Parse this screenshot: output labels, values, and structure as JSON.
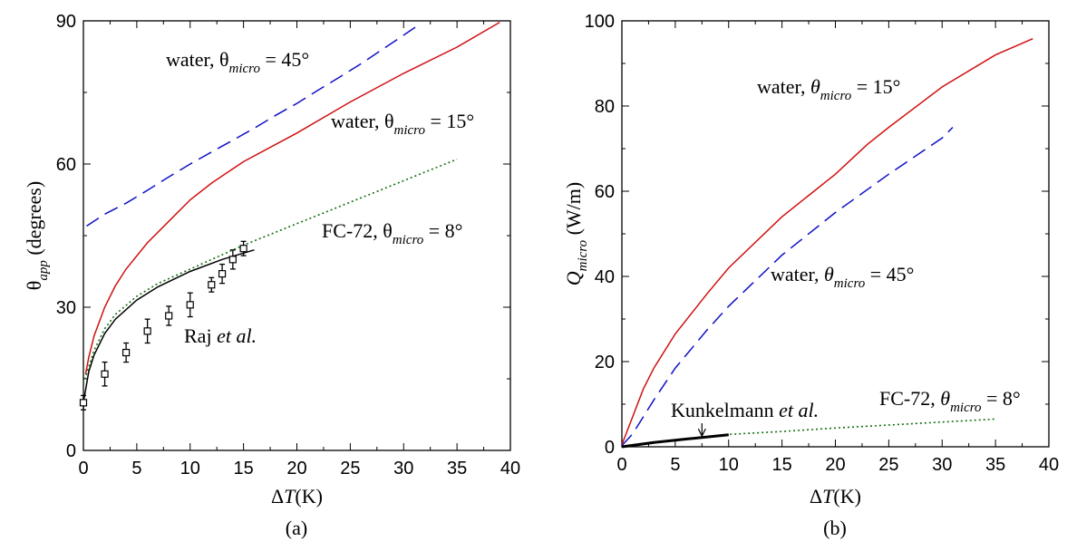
{
  "chart_data": [
    {
      "type": "line",
      "caption": "(a)",
      "xlabel": {
        "symbol": "Δ",
        "var": "T",
        "unit": "(K)"
      },
      "ylabel": {
        "symbol": "θ",
        "sub": "app",
        "unit": "(degrees)"
      },
      "xlim": [
        0,
        40
      ],
      "ylim": [
        0,
        90
      ],
      "x_ticks": [
        "0",
        "5",
        "10",
        "15",
        "20",
        "25",
        "30",
        "35",
        "40"
      ],
      "y_ticks": [
        "0",
        "30",
        "60",
        "90"
      ],
      "grid": false,
      "series": [
        {
          "id": "water45",
          "color": "#1010c8",
          "style": "dashed",
          "label": {
            "pre": "water, θ",
            "sub": "micro",
            "post": " = 45°"
          },
          "points": [
            [
              0.3,
              47
            ],
            [
              2,
              49.5
            ],
            [
              4,
              51.8
            ],
            [
              6,
              54.5
            ],
            [
              8,
              57.3
            ],
            [
              10,
              60
            ],
            [
              12,
              62.5
            ],
            [
              14,
              65
            ],
            [
              16,
              67.5
            ],
            [
              18,
              70.2
            ],
            [
              20,
              72.7
            ],
            [
              22,
              75.5
            ],
            [
              24,
              78.2
            ],
            [
              26,
              81
            ],
            [
              28,
              84
            ],
            [
              30,
              87
            ],
            [
              31.3,
              89
            ]
          ]
        },
        {
          "id": "water15",
          "color": "#d01010",
          "style": "solid",
          "label": {
            "pre": "water, θ",
            "sub": "micro",
            "post": " = 15°"
          },
          "points": [
            [
              0.2,
              16
            ],
            [
              0.5,
              19.5
            ],
            [
              1,
              24
            ],
            [
              2,
              30
            ],
            [
              3,
              34.5
            ],
            [
              4,
              38
            ],
            [
              6,
              43.5
            ],
            [
              8,
              48
            ],
            [
              10,
              52.5
            ],
            [
              12,
              56
            ],
            [
              15,
              60.5
            ],
            [
              20,
              66.5
            ],
            [
              25,
              73
            ],
            [
              30,
              79
            ],
            [
              35,
              84.5
            ],
            [
              39,
              89.7
            ]
          ]
        },
        {
          "id": "fc72",
          "color": "#107010",
          "style": "dotted",
          "label": {
            "pre": "FC-72, θ",
            "sub": "micro",
            "post": " = 8°"
          },
          "points": [
            [
              0,
              14
            ],
            [
              0.5,
              17.5
            ],
            [
              1,
              21
            ],
            [
              2,
              25.5
            ],
            [
              3,
              28.5
            ],
            [
              5,
              32.3
            ],
            [
              7,
              35
            ],
            [
              10,
              38
            ],
            [
              13,
              41
            ],
            [
              15,
              43
            ],
            [
              20,
              47.5
            ],
            [
              25,
              52
            ],
            [
              30,
              56.5
            ],
            [
              35,
              61
            ]
          ]
        },
        {
          "id": "model_black",
          "color": "#000000",
          "style": "solid",
          "label": null,
          "points": [
            [
              0,
              10
            ],
            [
              0.5,
              16.5
            ],
            [
              1,
              20
            ],
            [
              2,
              24.5
            ],
            [
              3,
              27.5
            ],
            [
              5,
              31.5
            ],
            [
              7,
              34.3
            ],
            [
              10,
              37.5
            ],
            [
              13,
              40
            ],
            [
              16,
              42
            ]
          ]
        },
        {
          "id": "raj",
          "color": "#000000",
          "style": "markers",
          "label": {
            "pre": "Raj ",
            "ital": "et al.",
            "post": ""
          },
          "points": [
            [
              0,
              10
            ],
            [
              2,
              16
            ],
            [
              4,
              20.5
            ],
            [
              6,
              25
            ],
            [
              8,
              28.2
            ],
            [
              10,
              30.5
            ],
            [
              12,
              34.7
            ],
            [
              13,
              37
            ],
            [
              14,
              40
            ],
            [
              15,
              42.3
            ]
          ],
          "errors": [
            1.5,
            2.5,
            2,
            2.5,
            2,
            2.5,
            1.5,
            2,
            2,
            1.5
          ]
        }
      ]
    },
    {
      "type": "line",
      "caption": "(b)",
      "xlabel": {
        "symbol": "Δ",
        "var": "T",
        "unit": "(K)"
      },
      "ylabel": {
        "var": "Q",
        "sub": "micro",
        "unit": "(W/m)"
      },
      "xlim": [
        0,
        40
      ],
      "ylim": [
        0,
        100
      ],
      "x_ticks": [
        "0",
        "5",
        "10",
        "15",
        "20",
        "25",
        "30",
        "35",
        "40"
      ],
      "y_ticks": [
        "0",
        "20",
        "40",
        "60",
        "80",
        "100"
      ],
      "grid": false,
      "series": [
        {
          "id": "water15",
          "color": "#d01010",
          "style": "solid",
          "label": {
            "pre": "water, ",
            "var": "θ",
            "sub": "micro",
            "post": " = 15°"
          },
          "points": [
            [
              0,
              0.5
            ],
            [
              1,
              7
            ],
            [
              2,
              13.5
            ],
            [
              3,
              18.5
            ],
            [
              5,
              26.5
            ],
            [
              8,
              36
            ],
            [
              10,
              42
            ],
            [
              15,
              54
            ],
            [
              20,
              64
            ],
            [
              23,
              71
            ],
            [
              25,
              75
            ],
            [
              30,
              84.5
            ],
            [
              35,
              92
            ],
            [
              38.5,
              95.8
            ]
          ]
        },
        {
          "id": "water45",
          "color": "#1010c8",
          "style": "dashed",
          "label": {
            "pre": "water, ",
            "var": "θ",
            "sub": "micro",
            "post": " = 45°"
          },
          "points": [
            [
              0,
              0.3
            ],
            [
              1,
              3
            ],
            [
              2,
              7
            ],
            [
              3,
              11
            ],
            [
              5,
              18.5
            ],
            [
              8,
              27.5
            ],
            [
              10,
              33
            ],
            [
              15,
              45
            ],
            [
              20,
              55
            ],
            [
              25,
              64
            ],
            [
              30,
              72.5
            ],
            [
              31,
              75
            ]
          ]
        },
        {
          "id": "fc72",
          "color": "#107010",
          "style": "dotted",
          "label": {
            "pre": "FC-72, ",
            "var": "θ",
            "sub": "micro",
            "post": " = 8°"
          },
          "points": [
            [
              0,
              0
            ],
            [
              5,
              1.6
            ],
            [
              10,
              2.9
            ],
            [
              15,
              3.6
            ],
            [
              20,
              4.4
            ],
            [
              25,
              5.1
            ],
            [
              30,
              5.8
            ],
            [
              35,
              6.5
            ]
          ]
        },
        {
          "id": "kunkelmann",
          "color": "#000000",
          "style": "solid-thick",
          "label": {
            "pre": "Kunkelmann ",
            "ital": "et al.",
            "post": ""
          },
          "points": [
            [
              0,
              0
            ],
            [
              3,
              1
            ],
            [
              6,
              1.8
            ],
            [
              10,
              2.8
            ]
          ]
        }
      ]
    }
  ]
}
